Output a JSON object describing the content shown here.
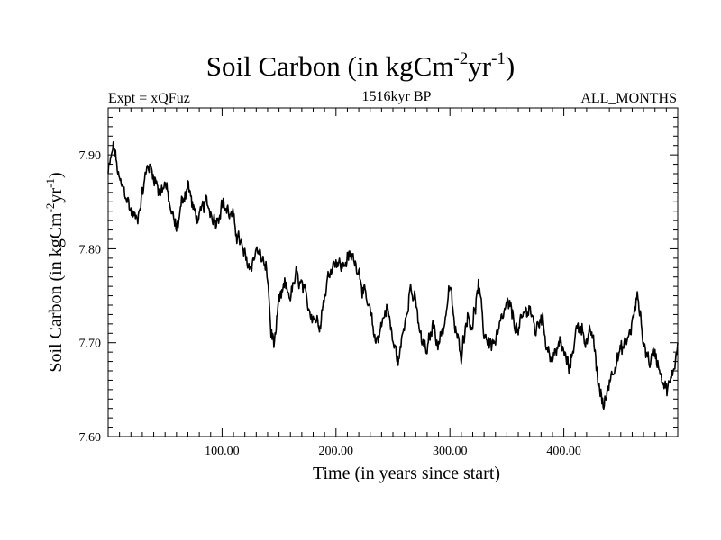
{
  "header": {
    "title_main": "Soil Carbon (in kgCm",
    "title_sup1": "-2",
    "title_mid": "yr",
    "title_sup2": "-1",
    "title_end": ")",
    "expt": "Expt = xQFuz",
    "period": "1516kyr BP",
    "months": "ALL_MONTHS"
  },
  "chart_data": {
    "type": "line",
    "title": "Soil Carbon (in kgCm-2yr-1)",
    "xlabel": "Time (in years since start)",
    "ylabel": "Soil Carbon (in kgCm-2yr-1)",
    "ylabel_parts": {
      "main": "Soil Carbon (in kgCm",
      "sup1": "-2",
      "mid": "yr",
      "sup2": "-1",
      "end": ")"
    },
    "xlim": [
      0,
      500
    ],
    "ylim": [
      7.6,
      7.95
    ],
    "x_ticks": [
      100,
      200,
      300,
      400
    ],
    "x_tick_labels": [
      "100.00",
      "200.00",
      "300.00",
      "400.00"
    ],
    "y_ticks": [
      7.6,
      7.7,
      7.8,
      7.9
    ],
    "y_tick_labels": [
      "7.60",
      "7.70",
      "7.80",
      "7.90"
    ],
    "series": [
      {
        "name": "Soil Carbon",
        "color": "#000000",
        "x": [
          0,
          5,
          10,
          15,
          20,
          25,
          30,
          35,
          40,
          45,
          50,
          55,
          60,
          65,
          70,
          75,
          80,
          85,
          90,
          95,
          100,
          105,
          110,
          115,
          120,
          125,
          130,
          135,
          140,
          143,
          146,
          150,
          155,
          160,
          165,
          170,
          175,
          180,
          185,
          190,
          195,
          200,
          205,
          210,
          215,
          220,
          225,
          230,
          235,
          240,
          245,
          250,
          255,
          260,
          265,
          270,
          275,
          280,
          285,
          290,
          295,
          300,
          305,
          310,
          315,
          320,
          325,
          330,
          335,
          340,
          345,
          350,
          355,
          360,
          365,
          370,
          375,
          380,
          385,
          390,
          395,
          400,
          405,
          410,
          415,
          420,
          425,
          430,
          435,
          440,
          445,
          450,
          455,
          460,
          465,
          470,
          475,
          480,
          485,
          490,
          495,
          500
        ],
        "y": [
          7.88,
          7.91,
          7.87,
          7.86,
          7.84,
          7.83,
          7.86,
          7.89,
          7.88,
          7.86,
          7.87,
          7.84,
          7.82,
          7.85,
          7.87,
          7.84,
          7.83,
          7.85,
          7.84,
          7.83,
          7.85,
          7.84,
          7.83,
          7.81,
          7.79,
          7.78,
          7.8,
          7.79,
          7.77,
          7.71,
          7.7,
          7.74,
          7.76,
          7.75,
          7.77,
          7.76,
          7.74,
          7.73,
          7.72,
          7.75,
          7.78,
          7.79,
          7.78,
          7.79,
          7.79,
          7.78,
          7.75,
          7.73,
          7.7,
          7.72,
          7.74,
          7.7,
          7.68,
          7.72,
          7.76,
          7.74,
          7.7,
          7.69,
          7.72,
          7.7,
          7.72,
          7.76,
          7.71,
          7.69,
          7.73,
          7.72,
          7.76,
          7.71,
          7.7,
          7.7,
          7.72,
          7.74,
          7.73,
          7.71,
          7.73,
          7.74,
          7.71,
          7.73,
          7.7,
          7.68,
          7.7,
          7.69,
          7.67,
          7.71,
          7.72,
          7.7,
          7.71,
          7.66,
          7.63,
          7.66,
          7.68,
          7.69,
          7.7,
          7.72,
          7.75,
          7.7,
          7.68,
          7.69,
          7.67,
          7.65,
          7.66,
          7.7
        ]
      }
    ]
  }
}
